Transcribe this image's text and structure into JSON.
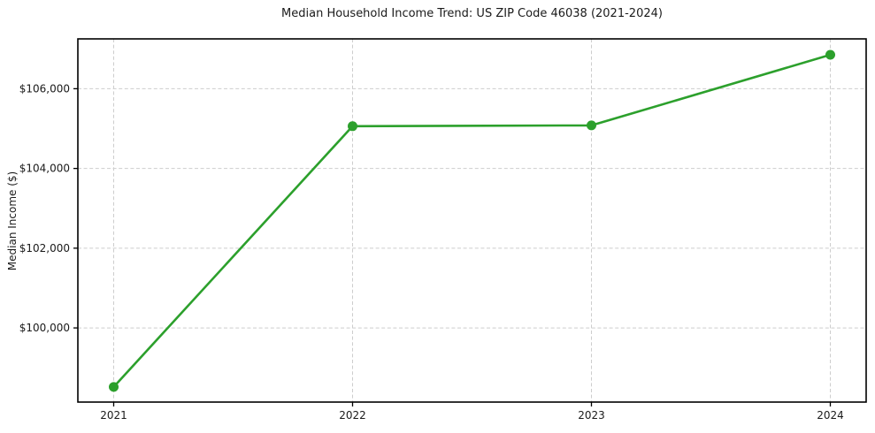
{
  "chart_data": {
    "type": "line",
    "title": "Median Household Income Trend: US ZIP Code 46038 (2021-2024)",
    "xlabel": "",
    "ylabel": "Median Income ($)",
    "x": [
      2021,
      2022,
      2023,
      2024
    ],
    "x_tick_labels": [
      "2021",
      "2022",
      "2023",
      "2024"
    ],
    "series": [
      {
        "name": "Median Household Income",
        "values": [
          98520,
          105060,
          105080,
          106850
        ],
        "color": "#2ca02c",
        "marker": "circle"
      }
    ],
    "y_ticks": [
      {
        "value": 100000,
        "label": "$100,000"
      },
      {
        "value": 102000,
        "label": "$102,000"
      },
      {
        "value": 104000,
        "label": "$104,000"
      },
      {
        "value": 106000,
        "label": "$106,000"
      }
    ],
    "xlim": [
      2020.85,
      2024.15
    ],
    "ylim": [
      98140,
      107250
    ],
    "grid": true,
    "grid_style": "dashed",
    "legend_position": "none",
    "colors": {
      "line": "#2ca02c",
      "marker": "#2ca02c",
      "grid": "#cdcdcd",
      "spine": "#000000",
      "text": "#1a1a1a",
      "background": "#ffffff"
    }
  }
}
